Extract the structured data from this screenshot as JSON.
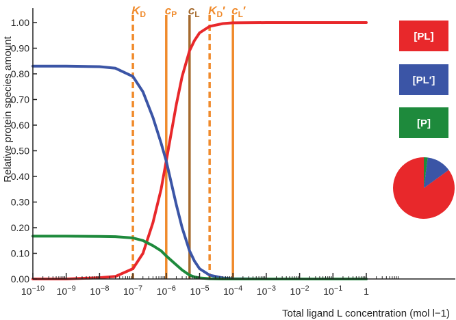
{
  "chart_data": {
    "type": "line",
    "xlabel": "Total ligand L concentration (mol l−1)",
    "ylabel": "Relative protein species amount",
    "x_scale": "log",
    "xlim": [
      1e-10,
      10
    ],
    "ylim": [
      0,
      1.05
    ],
    "x_ticks": [
      1e-10,
      1e-09,
      1e-08,
      1e-07,
      1e-06,
      1e-05,
      0.0001,
      0.001,
      0.01,
      0.1,
      1
    ],
    "x_tick_labels": [
      "10−10",
      "10−9",
      "10−8",
      "10−7",
      "10−6",
      "10−5",
      "10−4",
      "10−3",
      "10−2",
      "10−1",
      "1"
    ],
    "y_ticks": [
      0,
      0.1,
      0.2,
      0.3,
      0.4,
      0.5,
      0.6,
      0.7,
      0.8,
      0.9,
      1.0
    ],
    "y_tick_labels": [
      "0.00",
      "0.10",
      "0.20",
      "0.30",
      "0.40",
      "0.50",
      "0.60",
      "0.70",
      "0.80",
      "0.90",
      "1.00"
    ],
    "grid": false,
    "series": [
      {
        "name": "[PL]",
        "color": "#e8282b",
        "x": [
          1e-10,
          1e-09,
          1e-08,
          3e-08,
          1e-07,
          2e-07,
          4e-07,
          7e-07,
          1e-06,
          2e-06,
          3e-06,
          5e-06,
          7e-06,
          1e-05,
          2e-05,
          5e-05,
          0.0001,
          0.001,
          1
        ],
        "values": [
          0.0,
          0.0,
          0.005,
          0.01,
          0.04,
          0.1,
          0.22,
          0.35,
          0.46,
          0.68,
          0.79,
          0.89,
          0.93,
          0.96,
          0.985,
          0.996,
          0.999,
          1.0,
          1.0
        ]
      },
      {
        "name": "[PL′]",
        "color": "#3b55a6",
        "x": [
          1e-10,
          1e-09,
          1e-08,
          3e-08,
          1e-07,
          2e-07,
          4e-07,
          7e-07,
          1e-06,
          2e-06,
          3e-06,
          5e-06,
          7e-06,
          1e-05,
          2e-05,
          5e-05,
          0.0001,
          0.001,
          1
        ],
        "values": [
          0.83,
          0.83,
          0.828,
          0.822,
          0.79,
          0.73,
          0.63,
          0.53,
          0.46,
          0.29,
          0.2,
          0.11,
          0.07,
          0.04,
          0.015,
          0.004,
          0.001,
          0.0,
          0.0
        ]
      },
      {
        "name": "[P]",
        "color": "#1e8a3c",
        "x": [
          1e-10,
          1e-09,
          1e-08,
          3e-08,
          1e-07,
          2e-07,
          4e-07,
          7e-07,
          1e-06,
          2e-06,
          3e-06,
          5e-06,
          7e-06,
          1e-05,
          2e-05,
          5e-05,
          0.0001,
          0.001,
          1
        ],
        "values": [
          0.167,
          0.167,
          0.166,
          0.165,
          0.16,
          0.15,
          0.13,
          0.11,
          0.09,
          0.055,
          0.035,
          0.015,
          0.008,
          0.004,
          0.001,
          0.0,
          0.0,
          0.0,
          0.0
        ]
      }
    ],
    "vlines": [
      {
        "label": "K",
        "sub": "D",
        "prime": "",
        "x": 1e-07,
        "style": "dashed",
        "color": "#f08a2b"
      },
      {
        "label": "c",
        "sub": "P",
        "prime": "",
        "x": 1e-06,
        "style": "solid",
        "color": "#f08a2b"
      },
      {
        "label": "c",
        "sub": "L",
        "prime": "",
        "x": 5e-06,
        "style": "solid",
        "color": "#a56a2e"
      },
      {
        "label": "K",
        "sub": "D",
        "prime": "′",
        "x": 2e-05,
        "style": "dashed",
        "color": "#f08a2b"
      },
      {
        "label": "c",
        "sub": "L",
        "prime": "′",
        "x": 0.0001,
        "style": "solid",
        "color": "#f08a2b"
      }
    ],
    "legend": {
      "position": "right",
      "items": [
        {
          "label": "[PL]",
          "color": "#e8282b"
        },
        {
          "label": "[PL′]",
          "color": "#3b55a6"
        },
        {
          "label": "[P]",
          "color": "#1e8a3c"
        }
      ]
    },
    "pie": {
      "values": [
        0.85,
        0.13,
        0.02
      ],
      "colors": [
        "#e8282b",
        "#3b55a6",
        "#1e8a3c"
      ]
    }
  }
}
